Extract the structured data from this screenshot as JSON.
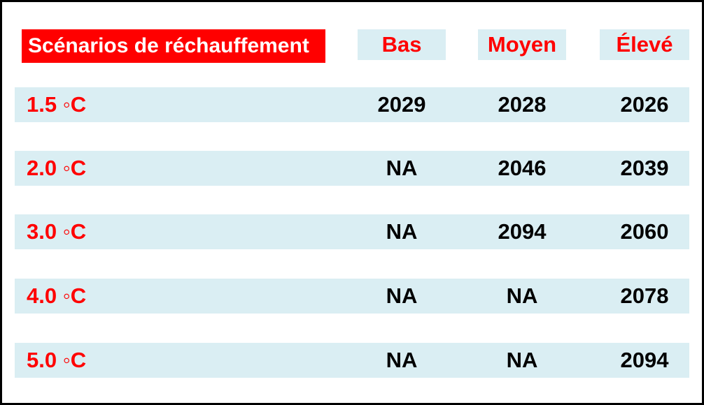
{
  "title": "Scénarios de réchauffement",
  "columns": [
    "Bas",
    "Moyen",
    "Élevé"
  ],
  "rows": [
    {
      "label": "1.5 ◦C",
      "values": [
        "2029",
        "2028",
        "2026"
      ]
    },
    {
      "label": "2.0 ◦C",
      "values": [
        "NA",
        "2046",
        "2039"
      ]
    },
    {
      "label": "3.0 ◦C",
      "values": [
        "NA",
        "2094",
        "2060"
      ]
    },
    {
      "label": "4.0 ◦C",
      "values": [
        "NA",
        "NA",
        "2078"
      ]
    },
    {
      "label": "5.0 ◦C",
      "values": [
        "NA",
        "NA",
        "2094"
      ]
    }
  ],
  "colors": {
    "title_background": "#ff0000",
    "title_text": "#ffffff",
    "header_text": "#ff0000",
    "row_label_text": "#ff0000",
    "stripe_background": "#daeef3",
    "value_text": "#000000",
    "frame_border": "#000000",
    "page_background": "#ffffff"
  },
  "chart_data": {
    "type": "table",
    "title": "Scénarios de réchauffement",
    "columns": [
      "Bas",
      "Moyen",
      "Élevé"
    ],
    "row_labels": [
      "1.5 ◦C",
      "2.0 ◦C",
      "3.0 ◦C",
      "4.0 ◦C",
      "5.0 ◦C"
    ],
    "warming_levels_celsius": [
      1.5,
      2.0,
      3.0,
      4.0,
      5.0
    ],
    "cells": [
      [
        "2029",
        "2028",
        "2026"
      ],
      [
        "NA",
        "2046",
        "2039"
      ],
      [
        "NA",
        "2094",
        "2060"
      ],
      [
        "NA",
        "NA",
        "2078"
      ],
      [
        "NA",
        "NA",
        "2094"
      ]
    ]
  }
}
